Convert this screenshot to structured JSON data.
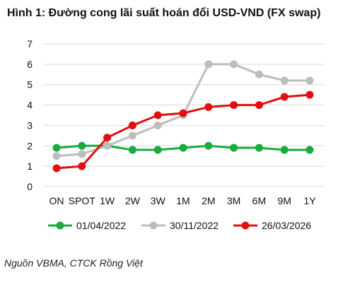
{
  "title": "Hình 1: Đường cong lãi suất hoán đổi USD-VND (FX swap)",
  "source": "Nguồn VBMA, CTCK Rồng Việt",
  "chart_data": {
    "type": "line",
    "categories": [
      "ON",
      "SPOT",
      "1W",
      "2W",
      "3W",
      "1M",
      "2M",
      "3M",
      "6M",
      "9M",
      "1Y"
    ],
    "ylim": [
      0,
      7
    ],
    "yticks": [
      0,
      1,
      2,
      3,
      4,
      5,
      6,
      7
    ],
    "grid": true,
    "legend_position": "bottom",
    "series": [
      {
        "name": "01/04/2022",
        "color": "#1aab3f",
        "values": [
          1.9,
          2.0,
          2.0,
          1.8,
          1.8,
          1.9,
          2.0,
          1.9,
          1.9,
          1.8,
          1.8
        ]
      },
      {
        "name": "30/11/2022",
        "color": "#bdbdbd",
        "values": [
          1.5,
          1.6,
          2.0,
          2.5,
          3.0,
          3.5,
          6.0,
          6.0,
          5.5,
          5.2,
          5.2
        ]
      },
      {
        "name": "26/03/2026",
        "color": "#e01010",
        "values": [
          0.9,
          1.0,
          2.4,
          3.0,
          3.5,
          3.6,
          3.9,
          4.0,
          4.0,
          4.4,
          4.5
        ]
      }
    ]
  }
}
